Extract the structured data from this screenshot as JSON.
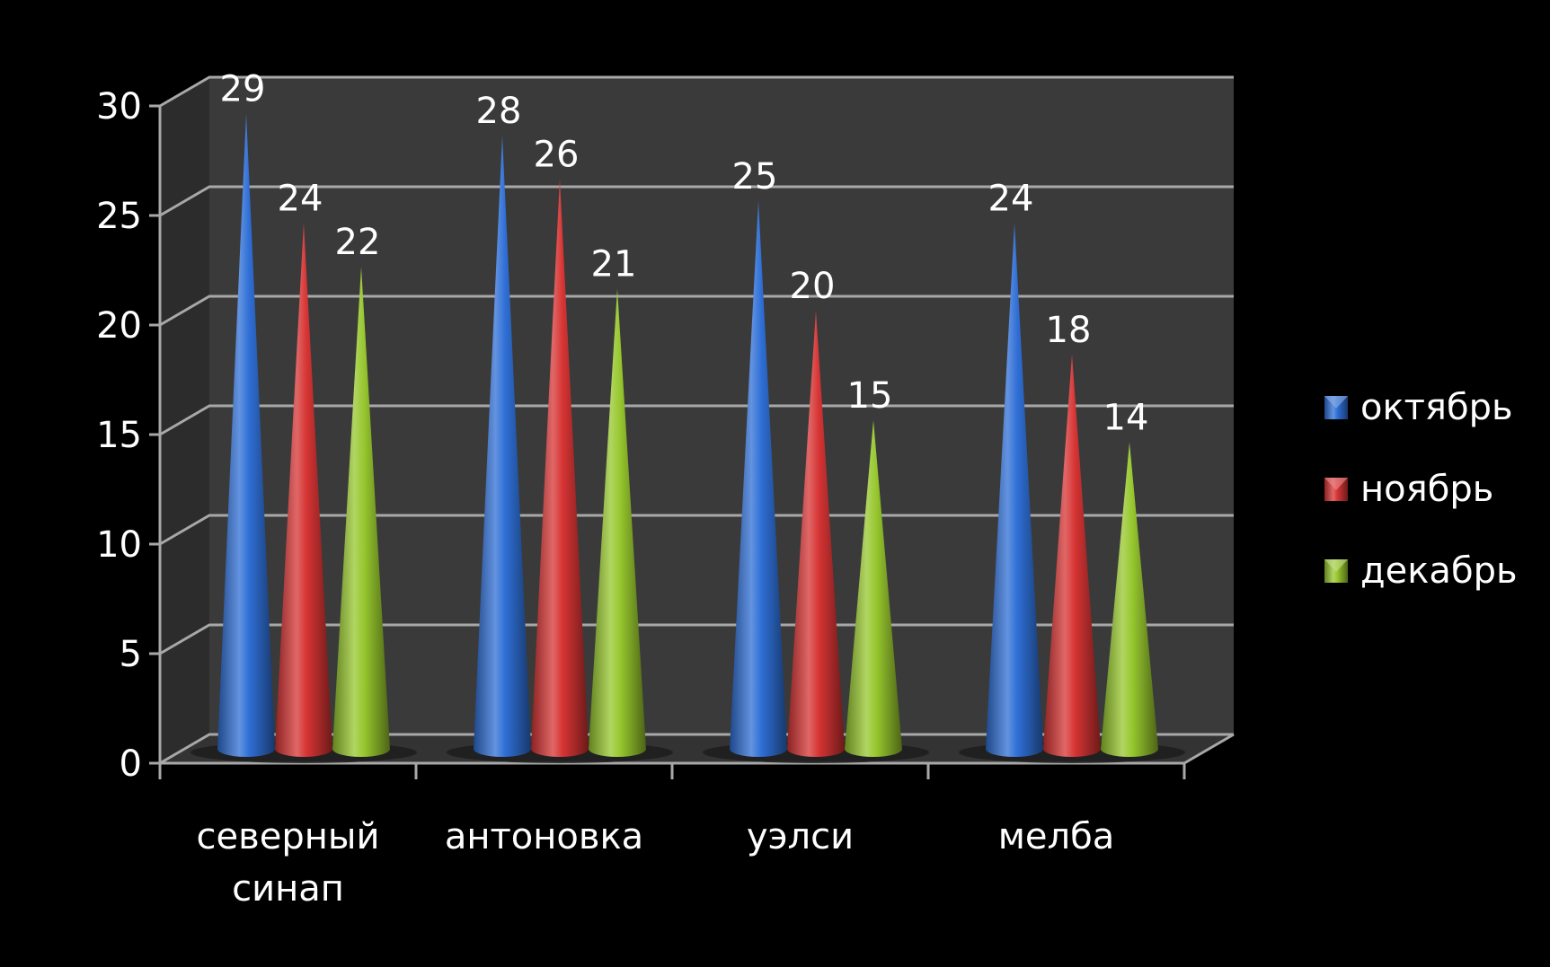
{
  "chart_data": {
    "type": "bar",
    "bar_shape": "cone",
    "view": "3d",
    "categories": [
      [
        "северный",
        "синап"
      ],
      [
        "антоновка"
      ],
      [
        "уэлси"
      ],
      [
        "мелба"
      ]
    ],
    "series": [
      {
        "name": "октябрь",
        "values": [
          29,
          28,
          25,
          24
        ],
        "color": "#2f6fd6"
      },
      {
        "name": "ноябрь",
        "values": [
          24,
          26,
          20,
          18
        ],
        "color": "#d73434"
      },
      {
        "name": "декабрь",
        "values": [
          22,
          21,
          15,
          14
        ],
        "color": "#97c72e"
      }
    ],
    "ylim": [
      0,
      30
    ],
    "yticks": [
      "0",
      "5",
      "10",
      "15",
      "20",
      "25",
      "30"
    ],
    "grid": true,
    "data_labels": true,
    "legend_position": "right",
    "background_color": "#000000",
    "wall_color": "#3a3a3a",
    "floor_color": "#333333",
    "gridline_color": "#a8a8a8",
    "text_color": "#ffffff"
  }
}
